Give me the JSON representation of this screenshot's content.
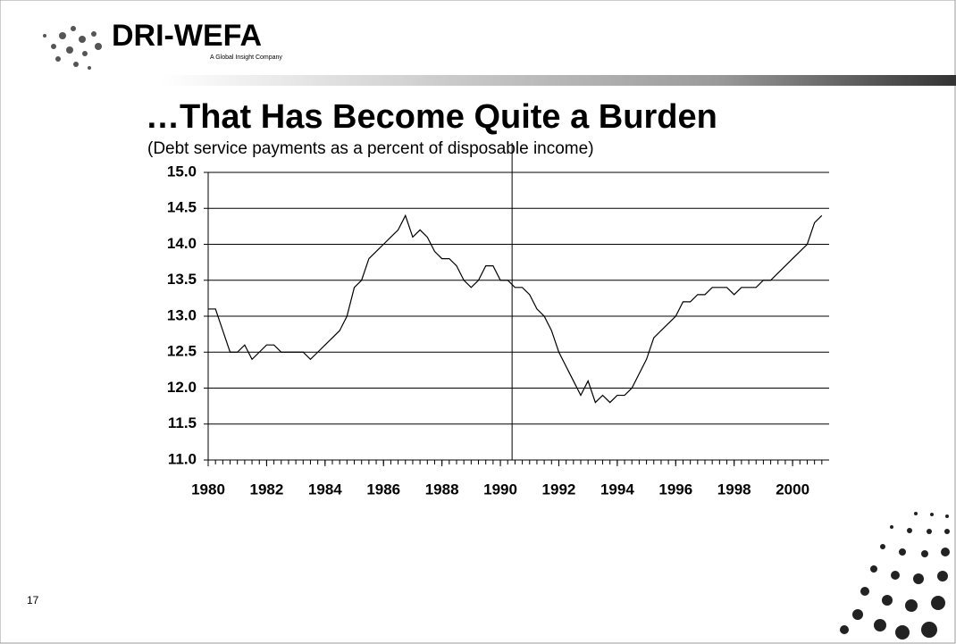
{
  "header": {
    "logo": "DRI-WEFA",
    "tagline": "A Global Insight Company"
  },
  "page_number": "17",
  "chart_data": {
    "type": "line",
    "title": "…That Has Become Quite a Burden",
    "subtitle": "(Debt service payments as a percent of disposable income)",
    "color": "#000000",
    "grid": true,
    "vline_x": 1990.4,
    "xlim": [
      1980,
      2001.25
    ],
    "ylim": [
      11.0,
      15.0
    ],
    "xticks": [
      1980,
      1982,
      1984,
      1986,
      1988,
      1990,
      1992,
      1994,
      1996,
      1998,
      2000
    ],
    "yticks": [
      {
        "value": 11.0,
        "label": "11.0"
      },
      11.5,
      {
        "value": 12.0,
        "label": "12.0"
      },
      12.5,
      {
        "value": 13.0,
        "label": "13.0"
      },
      13.5,
      {
        "value": 14.0,
        "label": "14.0"
      },
      14.5,
      {
        "value": 15.0,
        "label": "15.0"
      }
    ],
    "x": [
      1980,
      1980.25,
      1980.5,
      1980.75,
      1981,
      1981.25,
      1981.5,
      1981.75,
      1982,
      1982.25,
      1982.5,
      1982.75,
      1983,
      1983.25,
      1983.5,
      1983.75,
      1984,
      1984.25,
      1984.5,
      1984.75,
      1985,
      1985.25,
      1985.5,
      1985.75,
      1986,
      1986.25,
      1986.5,
      1986.75,
      1987,
      1987.25,
      1987.5,
      1987.75,
      1988,
      1988.25,
      1988.5,
      1988.75,
      1989,
      1989.25,
      1989.5,
      1989.75,
      1990,
      1990.25,
      1990.5,
      1990.75,
      1991,
      1991.25,
      1991.5,
      1991.75,
      1992,
      1992.25,
      1992.5,
      1992.75,
      1993,
      1993.25,
      1993.5,
      1993.75,
      1994,
      1994.25,
      1994.5,
      1994.75,
      1995,
      1995.25,
      1995.5,
      1995.75,
      1996,
      1996.25,
      1996.5,
      1996.75,
      1997,
      1997.25,
      1997.5,
      1997.75,
      1998,
      1998.25,
      1998.5,
      1998.75,
      1999,
      1999.25,
      1999.5,
      1999.75,
      2000,
      2000.25,
      2000.5,
      2000.75,
      2001
    ],
    "values": [
      13.1,
      13.1,
      12.8,
      12.5,
      12.5,
      12.6,
      12.4,
      12.5,
      12.6,
      12.6,
      12.5,
      12.5,
      12.5,
      12.5,
      12.4,
      12.5,
      12.6,
      12.7,
      12.8,
      13.0,
      13.4,
      13.5,
      13.8,
      13.9,
      14.0,
      14.1,
      14.2,
      14.4,
      14.1,
      14.2,
      14.1,
      13.9,
      13.8,
      13.8,
      13.7,
      13.5,
      13.4,
      13.5,
      13.7,
      13.7,
      13.5,
      13.5,
      13.4,
      13.4,
      13.3,
      13.1,
      13.0,
      12.8,
      12.5,
      12.3,
      12.1,
      11.9,
      12.1,
      11.8,
      11.9,
      11.8,
      11.9,
      11.9,
      12.0,
      12.2,
      12.4,
      12.7,
      12.8,
      12.9,
      13.0,
      13.2,
      13.2,
      13.3,
      13.3,
      13.4,
      13.4,
      13.4,
      13.3,
      13.4,
      13.4,
      13.4,
      13.5,
      13.5,
      13.6,
      13.7,
      13.8,
      13.9,
      14.0,
      14.3,
      14.4
    ]
  }
}
